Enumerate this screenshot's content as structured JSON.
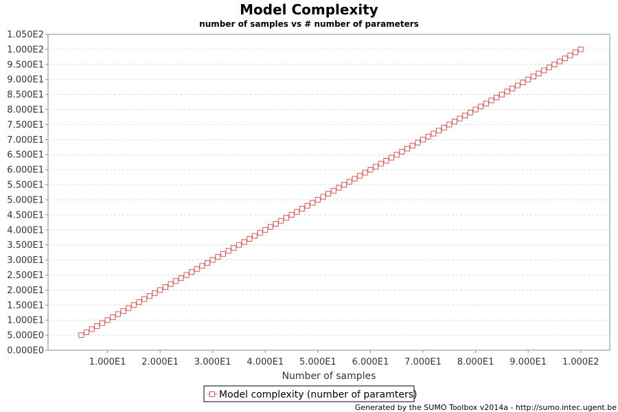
{
  "chart_data": {
    "type": "line",
    "title": "Model Complexity",
    "subtitle": "number of samples vs # number of parameters",
    "xlabel": "Number of samples",
    "ylabel": "",
    "xlim": [
      0,
      105
    ],
    "ylim": [
      0,
      105
    ],
    "x_ticks": [
      10,
      20,
      30,
      40,
      50,
      60,
      70,
      80,
      90,
      100
    ],
    "x_tick_labels": [
      "1.000E1",
      "2.000E1",
      "3.000E1",
      "4.000E1",
      "5.000E1",
      "6.000E1",
      "7.000E1",
      "8.000E1",
      "9.000E1",
      "1.000E2"
    ],
    "y_ticks": [
      0,
      5,
      10,
      15,
      20,
      25,
      30,
      35,
      40,
      45,
      50,
      55,
      60,
      65,
      70,
      75,
      80,
      85,
      90,
      95,
      100,
      105
    ],
    "y_tick_labels": [
      "0.000E0",
      "5.000E0",
      "1.000E1",
      "1.500E1",
      "2.000E1",
      "2.500E1",
      "3.000E1",
      "3.500E1",
      "4.000E1",
      "4.500E1",
      "5.000E1",
      "5.500E1",
      "6.000E1",
      "6.500E1",
      "7.000E1",
      "7.500E1",
      "8.000E1",
      "8.500E1",
      "9.000E1",
      "9.500E1",
      "1.000E2",
      "1.050E2"
    ],
    "grid": true,
    "legend_position": "bottom-center",
    "series": [
      {
        "name": "Model complexity (number of paramters)",
        "color": "#d9534f",
        "marker": "square",
        "x": [
          5,
          6,
          7,
          8,
          9,
          10,
          11,
          12,
          13,
          14,
          15,
          16,
          17,
          18,
          19,
          20,
          21,
          22,
          23,
          24,
          25,
          26,
          27,
          28,
          29,
          30,
          31,
          32,
          33,
          34,
          35,
          36,
          37,
          38,
          39,
          40,
          41,
          42,
          43,
          44,
          45,
          46,
          47,
          48,
          49,
          50,
          51,
          52,
          53,
          54,
          55,
          56,
          57,
          58,
          59,
          60,
          61,
          62,
          63,
          64,
          65,
          66,
          67,
          68,
          69,
          70,
          71,
          72,
          73,
          74,
          75,
          76,
          77,
          78,
          79,
          80,
          81,
          82,
          83,
          84,
          85,
          86,
          87,
          88,
          89,
          90,
          91,
          92,
          93,
          94,
          95,
          96,
          97,
          98,
          99,
          100
        ],
        "y": [
          5,
          6,
          7,
          8,
          9,
          10,
          11,
          12,
          13,
          14,
          15,
          16,
          17,
          18,
          19,
          20,
          21,
          22,
          23,
          24,
          25,
          26,
          27,
          28,
          29,
          30,
          31,
          32,
          33,
          34,
          35,
          36,
          37,
          38,
          39,
          40,
          41,
          42,
          43,
          44,
          45,
          46,
          47,
          48,
          49,
          50,
          51,
          52,
          53,
          54,
          55,
          56,
          57,
          58,
          59,
          60,
          61,
          62,
          63,
          64,
          65,
          66,
          67,
          68,
          69,
          70,
          71,
          72,
          73,
          74,
          75,
          76,
          77,
          78,
          79,
          80,
          81,
          82,
          83,
          84,
          85,
          86,
          87,
          88,
          89,
          90,
          91,
          92,
          93,
          94,
          95,
          96,
          97,
          98,
          99,
          100
        ]
      }
    ]
  },
  "footer": "Generated by the SUMO Toolbox v2014a - http://sumo.intec.ugent.be"
}
